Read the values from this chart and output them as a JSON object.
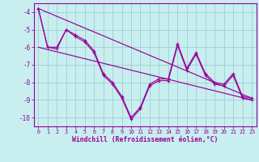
{
  "xlabel": "Windchill (Refroidissement éolien,°C)",
  "xlim": [
    -0.5,
    23.5
  ],
  "ylim": [
    -10.5,
    -3.5
  ],
  "yticks": [
    -10,
    -9,
    -8,
    -7,
    -6,
    -5,
    -4
  ],
  "xticks": [
    0,
    1,
    2,
    3,
    4,
    5,
    6,
    7,
    8,
    9,
    10,
    11,
    12,
    13,
    14,
    15,
    16,
    17,
    18,
    19,
    20,
    21,
    22,
    23
  ],
  "bg_color": "#c8eef0",
  "line_color": "#990099",
  "grid_color": "#9dcfcf",
  "series_zigzag1_x": [
    0,
    1,
    2,
    3,
    4,
    5,
    6,
    7,
    8,
    9,
    10,
    11,
    12,
    13,
    14,
    15,
    16,
    17,
    18,
    19,
    20,
    21,
    22,
    23
  ],
  "series_zigzag1_y": [
    -3.8,
    -6.0,
    -6.0,
    -5.0,
    -5.3,
    -5.6,
    -6.2,
    -7.5,
    -8.0,
    -8.8,
    -10.0,
    -9.4,
    -8.1,
    -7.8,
    -7.8,
    -5.8,
    -7.2,
    -6.3,
    -7.5,
    -8.0,
    -8.1,
    -7.5,
    -8.8,
    -8.9
  ],
  "series_zigzag2_x": [
    0,
    1,
    2,
    3,
    4,
    5,
    6,
    7,
    8,
    9,
    10,
    11,
    12,
    13,
    14,
    15,
    16,
    17,
    18,
    19,
    20,
    21,
    22,
    23
  ],
  "series_zigzag2_y": [
    -3.8,
    -6.0,
    -6.1,
    -5.0,
    -5.4,
    -5.7,
    -6.3,
    -7.6,
    -8.1,
    -8.9,
    -10.1,
    -9.5,
    -8.2,
    -7.9,
    -7.9,
    -5.9,
    -7.3,
    -6.4,
    -7.6,
    -8.1,
    -8.2,
    -7.6,
    -8.9,
    -9.0
  ],
  "trend1_x": [
    0,
    23
  ],
  "trend1_y": [
    -3.8,
    -8.9
  ],
  "trend2_x": [
    0,
    23
  ],
  "trend2_y": [
    -6.0,
    -9.0
  ]
}
